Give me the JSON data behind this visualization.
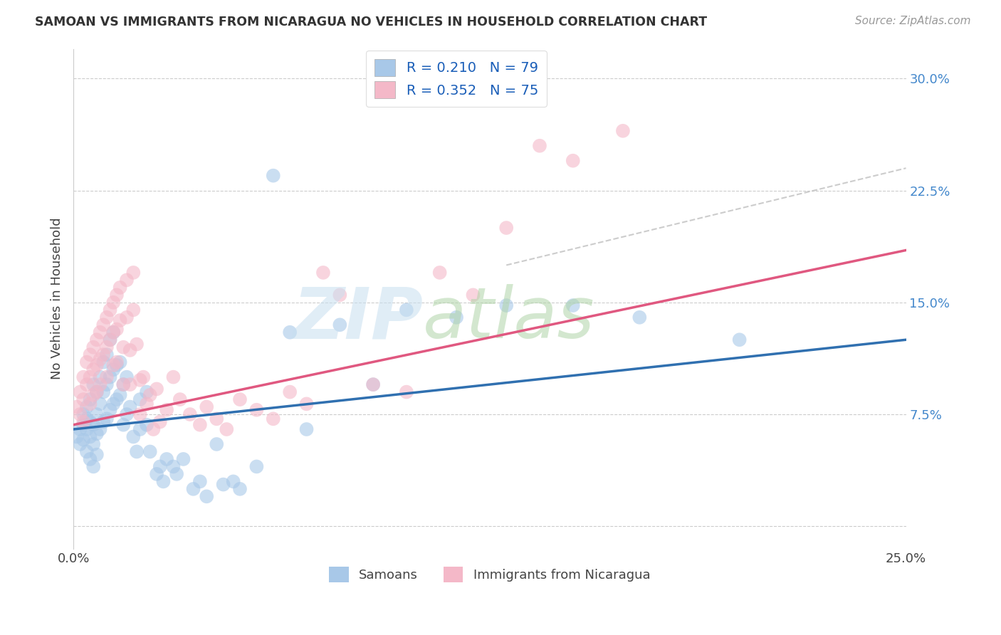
{
  "title": "SAMOAN VS IMMIGRANTS FROM NICARAGUA NO VEHICLES IN HOUSEHOLD CORRELATION CHART",
  "source": "Source: ZipAtlas.com",
  "ylabel": "No Vehicles in Household",
  "ytick_vals": [
    0.0,
    0.075,
    0.15,
    0.225,
    0.3
  ],
  "ytick_labels": [
    "",
    "7.5%",
    "15.0%",
    "22.5%",
    "30.0%"
  ],
  "xlim": [
    0.0,
    0.25
  ],
  "ylim": [
    -0.015,
    0.32
  ],
  "color_blue": "#a8c8e8",
  "color_pink": "#f4b8c8",
  "line_blue": "#3070b0",
  "line_pink": "#e05880",
  "line_dashed": "#c0c0c0",
  "background_color": "#ffffff",
  "legend_r1": "R = 0.210",
  "legend_n1": "N = 79",
  "legend_r2": "R = 0.352",
  "legend_n2": "N = 75",
  "samoans_x": [
    0.001,
    0.002,
    0.002,
    0.003,
    0.003,
    0.003,
    0.004,
    0.004,
    0.004,
    0.004,
    0.005,
    0.005,
    0.005,
    0.005,
    0.006,
    0.006,
    0.006,
    0.006,
    0.007,
    0.007,
    0.007,
    0.007,
    0.008,
    0.008,
    0.008,
    0.009,
    0.009,
    0.009,
    0.01,
    0.01,
    0.01,
    0.011,
    0.011,
    0.011,
    0.012,
    0.012,
    0.012,
    0.013,
    0.013,
    0.014,
    0.014,
    0.015,
    0.015,
    0.016,
    0.016,
    0.017,
    0.018,
    0.019,
    0.02,
    0.02,
    0.022,
    0.022,
    0.023,
    0.025,
    0.026,
    0.027,
    0.028,
    0.03,
    0.031,
    0.033,
    0.036,
    0.038,
    0.04,
    0.043,
    0.045,
    0.048,
    0.05,
    0.055,
    0.06,
    0.065,
    0.07,
    0.08,
    0.09,
    0.1,
    0.115,
    0.13,
    0.15,
    0.17,
    0.2
  ],
  "samoans_y": [
    0.06,
    0.065,
    0.055,
    0.075,
    0.068,
    0.058,
    0.08,
    0.072,
    0.065,
    0.05,
    0.085,
    0.07,
    0.06,
    0.045,
    0.095,
    0.068,
    0.055,
    0.04,
    0.09,
    0.075,
    0.062,
    0.048,
    0.1,
    0.082,
    0.065,
    0.11,
    0.09,
    0.07,
    0.115,
    0.095,
    0.072,
    0.125,
    0.1,
    0.078,
    0.13,
    0.105,
    0.082,
    0.108,
    0.085,
    0.11,
    0.088,
    0.095,
    0.068,
    0.1,
    0.075,
    0.08,
    0.06,
    0.05,
    0.085,
    0.065,
    0.09,
    0.068,
    0.05,
    0.035,
    0.04,
    0.03,
    0.045,
    0.04,
    0.035,
    0.045,
    0.025,
    0.03,
    0.02,
    0.055,
    0.028,
    0.03,
    0.025,
    0.04,
    0.235,
    0.13,
    0.065,
    0.135,
    0.095,
    0.145,
    0.14,
    0.148,
    0.148,
    0.14,
    0.125
  ],
  "nicaragua_x": [
    0.001,
    0.002,
    0.002,
    0.003,
    0.003,
    0.003,
    0.004,
    0.004,
    0.005,
    0.005,
    0.005,
    0.006,
    0.006,
    0.006,
    0.007,
    0.007,
    0.007,
    0.008,
    0.008,
    0.008,
    0.009,
    0.009,
    0.01,
    0.01,
    0.01,
    0.011,
    0.011,
    0.012,
    0.012,
    0.012,
    0.013,
    0.013,
    0.013,
    0.014,
    0.014,
    0.015,
    0.015,
    0.016,
    0.016,
    0.017,
    0.017,
    0.018,
    0.018,
    0.019,
    0.02,
    0.02,
    0.021,
    0.022,
    0.023,
    0.024,
    0.025,
    0.026,
    0.028,
    0.03,
    0.032,
    0.035,
    0.038,
    0.04,
    0.043,
    0.046,
    0.05,
    0.055,
    0.06,
    0.065,
    0.07,
    0.075,
    0.08,
    0.09,
    0.1,
    0.11,
    0.12,
    0.13,
    0.14,
    0.15,
    0.165
  ],
  "nicaragua_y": [
    0.08,
    0.09,
    0.075,
    0.1,
    0.085,
    0.07,
    0.11,
    0.095,
    0.115,
    0.1,
    0.082,
    0.12,
    0.105,
    0.088,
    0.125,
    0.108,
    0.09,
    0.13,
    0.112,
    0.095,
    0.135,
    0.115,
    0.14,
    0.12,
    0.1,
    0.145,
    0.125,
    0.15,
    0.13,
    0.108,
    0.155,
    0.132,
    0.11,
    0.16,
    0.138,
    0.12,
    0.095,
    0.165,
    0.14,
    0.118,
    0.095,
    0.17,
    0.145,
    0.122,
    0.098,
    0.075,
    0.1,
    0.082,
    0.088,
    0.065,
    0.092,
    0.07,
    0.078,
    0.1,
    0.085,
    0.075,
    0.068,
    0.08,
    0.072,
    0.065,
    0.085,
    0.078,
    0.072,
    0.09,
    0.082,
    0.17,
    0.155,
    0.095,
    0.09,
    0.17,
    0.155,
    0.2,
    0.255,
    0.245,
    0.265
  ]
}
